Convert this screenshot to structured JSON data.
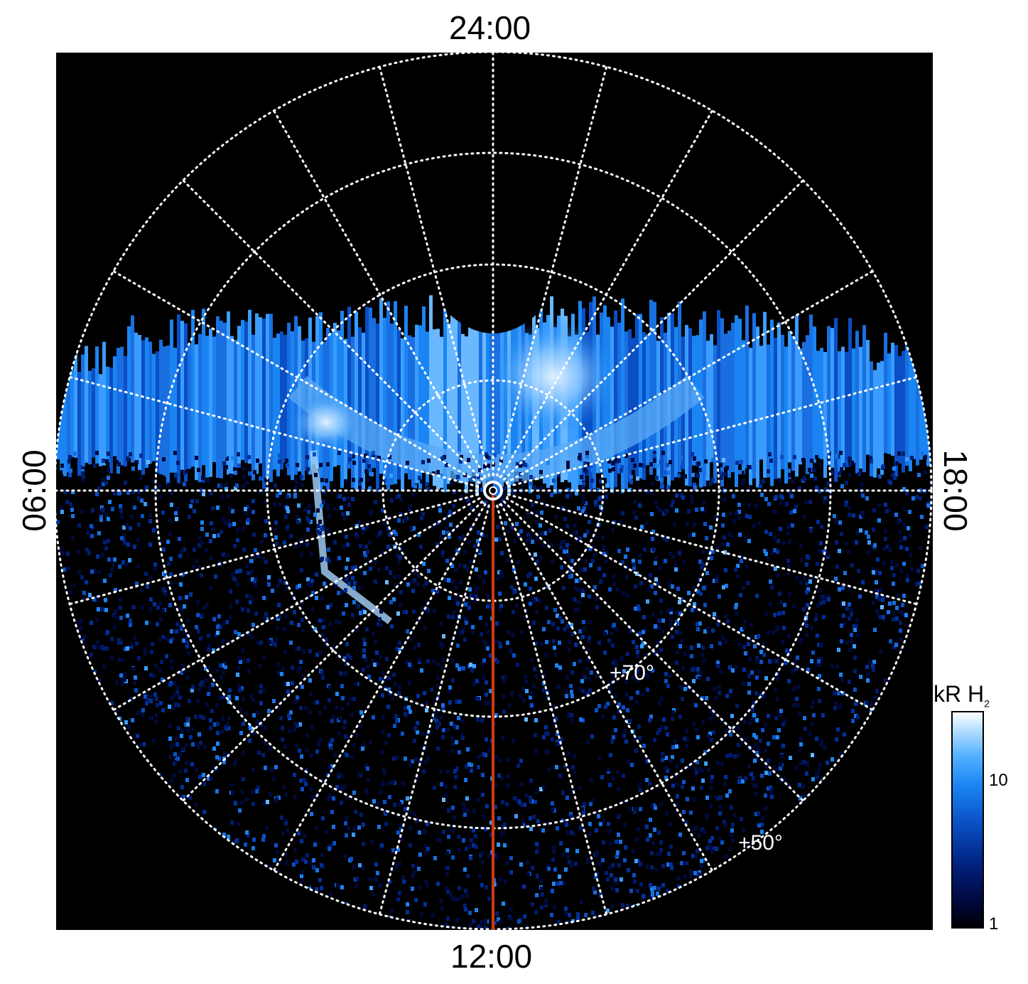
{
  "axes": {
    "top": "24:00",
    "bottom": "12:00",
    "left": "06:00",
    "right": "18:00"
  },
  "latitude_labels": {
    "inner": "+70°",
    "outer": "+50°"
  },
  "colorbar": {
    "title": "kR H",
    "title_subscript": "2",
    "ticks": [
      "10",
      "1"
    ],
    "scale": "log"
  },
  "colors": {
    "background": "#000000",
    "grid": "#ffffff",
    "meridian_line": "#d13a10",
    "emission_low": "#001f7a",
    "emission_mid": "#1a85f2",
    "emission_high": "#bfe3ff"
  }
}
